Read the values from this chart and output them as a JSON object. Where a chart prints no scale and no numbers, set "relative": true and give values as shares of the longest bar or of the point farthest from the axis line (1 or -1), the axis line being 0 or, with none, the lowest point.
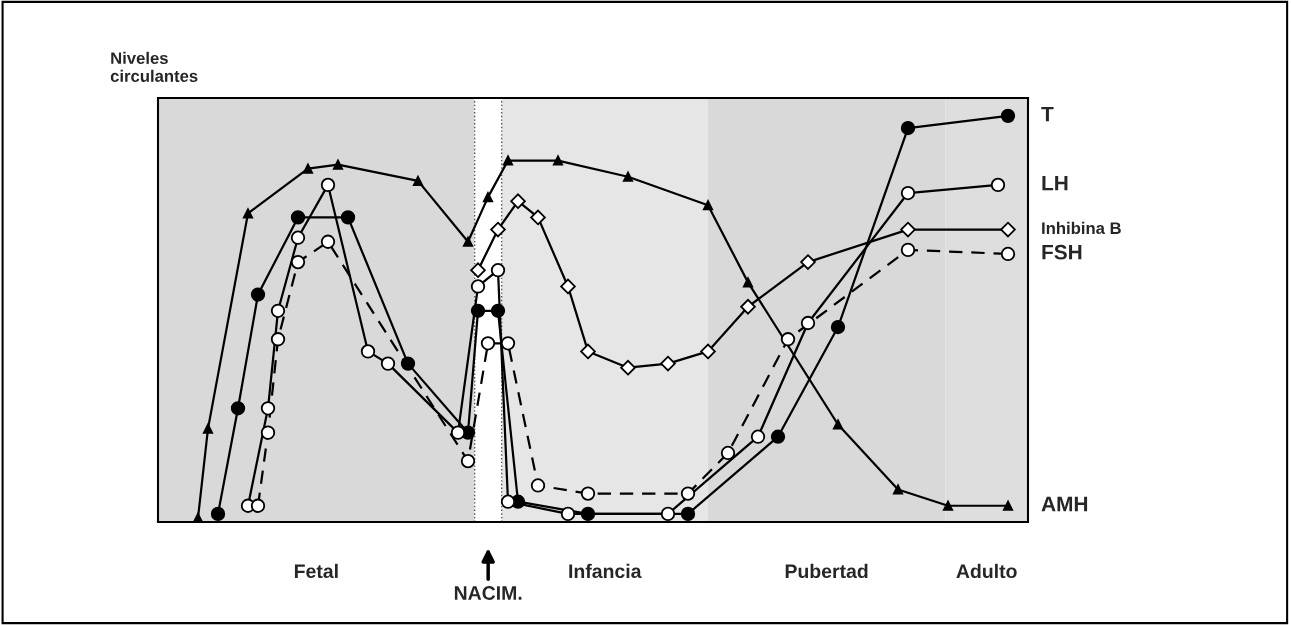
{
  "chart_data": {
    "type": "line",
    "relative": true,
    "ylabel": "Niveles\ncirculantes",
    "categories": [
      null,
      null,
      null,
      null,
      null,
      null,
      null,
      null,
      null,
      null,
      null,
      null,
      null,
      null,
      null,
      null,
      null,
      null,
      null,
      null,
      null,
      null,
      null,
      null,
      null,
      null,
      null,
      null,
      null,
      null,
      null,
      null,
      null,
      null,
      null,
      null,
      null,
      null,
      null,
      null,
      null,
      null,
      null,
      null,
      null,
      null,
      null,
      null,
      null,
      null,
      null,
      null,
      null,
      null,
      null,
      null,
      null,
      null,
      null,
      null,
      null,
      null,
      null,
      null,
      null,
      null,
      null,
      null,
      null,
      null,
      null,
      null,
      null,
      null,
      null,
      null,
      null,
      null,
      null,
      null,
      null,
      null,
      null,
      null,
      null,
      null,
      null,
      null
    ],
    "series": [
      {
        "name": "T",
        "color": "#000000",
        "marker": "circle",
        "line_style": "solid",
        "values": [
          null,
          null,
          null,
          null,
          null,
          null,
          0.02,
          null,
          0.28,
          null,
          0.56,
          null,
          null,
          null,
          0.75,
          null,
          null,
          null,
          null,
          0.75,
          null,
          null,
          null,
          null,
          null,
          0.39,
          null,
          null,
          null,
          null,
          null,
          0.22,
          0.52,
          null,
          0.52,
          null,
          0.05,
          null,
          null,
          null,
          null,
          null,
          null,
          0.02,
          null,
          null,
          null,
          null,
          null,
          null,
          null,
          null,
          null,
          0.02,
          null,
          null,
          null,
          null,
          null,
          null,
          null,
          null,
          0.21,
          null,
          null,
          null,
          null,
          null,
          0.48,
          null,
          null,
          null,
          null,
          null,
          null,
          0.97,
          null,
          null,
          null,
          null,
          null,
          null,
          null,
          null,
          null,
          1,
          null,
          null
        ]
      },
      {
        "name": "LH",
        "color": "#ffffff",
        "marker": "circle",
        "line_style": "solid",
        "values": [
          null,
          null,
          null,
          null,
          null,
          null,
          null,
          null,
          null,
          0.04,
          null,
          0.28,
          0.52,
          null,
          0.7,
          null,
          null,
          0.83,
          null,
          null,
          null,
          0.42,
          null,
          0.39,
          null,
          null,
          null,
          null,
          null,
          null,
          0.22,
          null,
          0.58,
          null,
          0.62,
          0.05,
          null,
          null,
          null,
          null,
          null,
          0.02,
          null,
          null,
          null,
          null,
          null,
          null,
          null,
          null,
          null,
          0.02,
          null,
          null,
          null,
          null,
          null,
          null,
          null,
          null,
          0.21,
          null,
          null,
          null,
          null,
          0.49,
          null,
          null,
          null,
          null,
          null,
          null,
          null,
          null,
          null,
          0.81,
          null,
          null,
          null,
          null,
          null,
          null,
          null,
          null,
          0.83,
          null,
          null,
          null
        ]
      },
      {
        "name": "Inhibina B",
        "color": "#ffffff",
        "marker": "diamond",
        "line_style": "solid",
        "values": [
          null,
          null,
          null,
          null,
          null,
          null,
          null,
          null,
          null,
          null,
          null,
          null,
          null,
          null,
          null,
          null,
          null,
          null,
          null,
          null,
          null,
          null,
          null,
          null,
          null,
          null,
          null,
          null,
          null,
          null,
          null,
          null,
          0.62,
          null,
          0.72,
          null,
          0.79,
          null,
          0.75,
          null,
          null,
          0.58,
          null,
          0.42,
          null,
          null,
          null,
          0.38,
          null,
          null,
          null,
          0.39,
          null,
          null,
          null,
          0.42,
          null,
          null,
          null,
          0.53,
          null,
          null,
          null,
          null,
          null,
          0.64,
          null,
          null,
          null,
          null,
          null,
          null,
          null,
          null,
          null,
          0.72,
          null,
          null,
          null,
          null,
          null,
          null,
          null,
          null,
          null,
          0.72,
          null,
          null
        ]
      },
      {
        "name": "FSH",
        "color": "#ffffff",
        "marker": "circle",
        "line_style": "dashed",
        "values": [
          null,
          null,
          null,
          null,
          null,
          null,
          null,
          null,
          null,
          null,
          0.04,
          0.22,
          0.45,
          null,
          0.64,
          null,
          null,
          0.69,
          null,
          null,
          null,
          null,
          null,
          null,
          null,
          null,
          null,
          null,
          null,
          null,
          null,
          0.15,
          null,
          0.44,
          null,
          0.44,
          null,
          null,
          0.09,
          null,
          null,
          null,
          null,
          0.07,
          null,
          null,
          null,
          null,
          null,
          null,
          null,
          null,
          null,
          0.07,
          null,
          null,
          null,
          0.17,
          null,
          null,
          null,
          null,
          null,
          0.45,
          null,
          null,
          null,
          null,
          null,
          null,
          null,
          null,
          null,
          null,
          null,
          0.67,
          null,
          null,
          null,
          null,
          null,
          null,
          null,
          null,
          null,
          0.66,
          null,
          null
        ]
      },
      {
        "name": "AMH",
        "color": "#000000",
        "marker": "triangle",
        "line_style": "solid",
        "values": [
          null,
          null,
          null,
          null,
          0.01,
          0.23,
          null,
          null,
          null,
          0.76,
          null,
          null,
          null,
          null,
          null,
          0.87,
          null,
          null,
          0.88,
          null,
          null,
          null,
          null,
          null,
          null,
          null,
          0.84,
          null,
          null,
          null,
          null,
          0.69,
          null,
          0.8,
          null,
          0.89,
          null,
          null,
          null,
          null,
          0.89,
          null,
          null,
          null,
          null,
          null,
          null,
          0.85,
          null,
          null,
          null,
          null,
          null,
          null,
          null,
          0.78,
          null,
          null,
          null,
          0.59,
          null,
          null,
          null,
          null,
          null,
          null,
          null,
          null,
          0.24,
          null,
          null,
          null,
          null,
          null,
          0.08,
          null,
          null,
          null,
          null,
          0.04,
          null,
          null,
          null,
          null,
          null,
          0.04,
          null,
          null
        ]
      }
    ],
    "annotations": [
      "Fetal",
      "NACIM.",
      "Infancia",
      "Pubertad",
      "Adulto"
    ],
    "legend": false,
    "tick_labels": false
  }
}
